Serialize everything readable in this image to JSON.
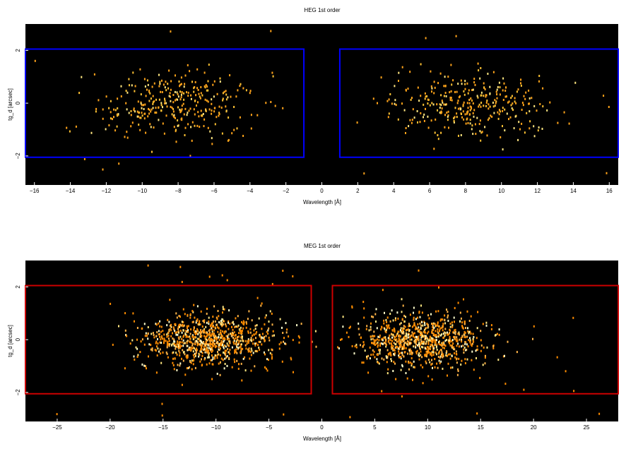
{
  "chart_data": [
    {
      "type": "heatmap",
      "title": "HEG 1st order",
      "xlabel": "Wavelength [Å]",
      "ylabel": "tg_d [arcsec]",
      "xlim": [
        -16.5,
        16.5
      ],
      "ylim": [
        -3.1,
        3.0
      ],
      "xticks": [
        -16,
        -14,
        -12,
        -10,
        -8,
        -6,
        -4,
        -2,
        0,
        2,
        4,
        6,
        8,
        10,
        12,
        14,
        16
      ],
      "yticks": [
        -2,
        0,
        2
      ],
      "background": "#000000",
      "event_colors": [
        "#ffa31a",
        "#ffc233",
        "#ffe680"
      ],
      "regions": [
        {
          "x0": -16.5,
          "x1": -1.0,
          "y0": -2.05,
          "y1": 2.05,
          "color": "#0000ff"
        },
        {
          "x0": 1.0,
          "x1": 16.5,
          "y0": -2.05,
          "y1": 2.05,
          "color": "#0000ff"
        }
      ],
      "clusters": [
        {
          "x_center": -8.0,
          "x_spread": 3.0,
          "y_spread": 0.6,
          "count": 330
        },
        {
          "x_center": 8.3,
          "x_spread": 3.0,
          "y_spread": 0.6,
          "count": 330
        }
      ],
      "outliers_per_side": 12
    },
    {
      "type": "heatmap",
      "title": "MEG 1st order",
      "xlabel": "Wavelength [Å]",
      "ylabel": "tg_d [arcsec]",
      "xlim": [
        -28.0,
        28.0
      ],
      "ylim": [
        -3.1,
        3.0
      ],
      "xticks": [
        -25,
        -20,
        -15,
        -10,
        -5,
        0,
        5,
        10,
        15,
        20,
        25
      ],
      "yticks": [
        -2,
        0,
        2
      ],
      "background": "#000000",
      "event_colors": [
        "#ff8c00",
        "#ffb347",
        "#ffe680",
        "#ffffcc"
      ],
      "regions": [
        {
          "x0": -28.0,
          "x1": -1.0,
          "y0": -2.05,
          "y1": 2.05,
          "color": "#cc0000"
        },
        {
          "x0": 1.0,
          "x1": 28.0,
          "y0": -2.05,
          "y1": 2.05,
          "color": "#cc0000"
        }
      ],
      "clusters": [
        {
          "x_center": -10.5,
          "x_spread": 4.2,
          "y_spread": 0.5,
          "count": 900
        },
        {
          "x_center": 9.3,
          "x_spread": 4.0,
          "y_spread": 0.5,
          "count": 900
        }
      ],
      "outliers_per_side": 25
    }
  ]
}
